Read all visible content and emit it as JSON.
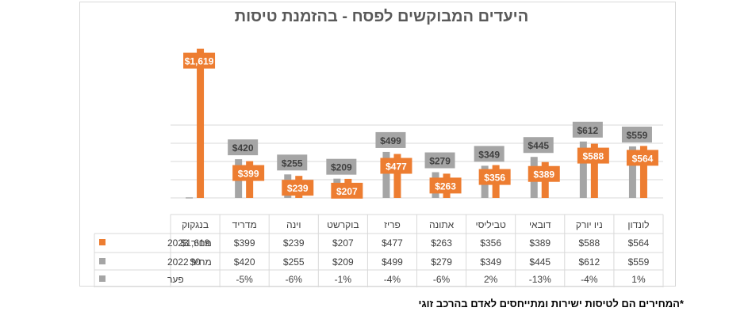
{
  "chart_data": {
    "type": "bar",
    "title": "היעדים המבוקשים לפסח - בהזמנת טיסות",
    "categories": [
      "לונדון",
      "ניו יורק",
      "דובאי",
      "טביליסי",
      "אתונה",
      "פריז",
      "בוקרשט",
      "וינה",
      "מדריד",
      "בנגקוק"
    ],
    "series": [
      {
        "name": "מחיר 2023",
        "color": "#ed7d31",
        "values": [
          564,
          588,
          389,
          356,
          263,
          477,
          207,
          239,
          399,
          1619
        ],
        "labels": [
          "$564",
          "$588",
          "$389",
          "$356",
          "$263",
          "$477",
          "$207",
          "$239",
          "$399",
          "$1,619"
        ]
      },
      {
        "name": "מחיר 2022",
        "color": "#a5a5a5",
        "values": [
          559,
          612,
          445,
          349,
          279,
          499,
          209,
          255,
          420,
          0
        ],
        "labels": [
          "$559",
          "$612",
          "$445",
          "$349",
          "$279",
          "$499",
          "$209",
          "$255",
          "$420",
          "$0"
        ]
      },
      {
        "name": "פער",
        "color": "#a5a5a5",
        "values": [
          1,
          -4,
          -13,
          2,
          -6,
          -4,
          -1,
          -6,
          -5,
          null
        ],
        "labels": [
          "1%",
          "-4%",
          "-13%",
          "2%",
          "-6%",
          "-4%",
          "-1%",
          "-6%",
          "-5%",
          ""
        ]
      }
    ],
    "ylim": [
      0,
      1650
    ],
    "grid": true,
    "direction": "rtl"
  },
  "footnote": "*המחירים הם לטיסות ישירות ומתייחסים לאדם בהרכב זוגי"
}
